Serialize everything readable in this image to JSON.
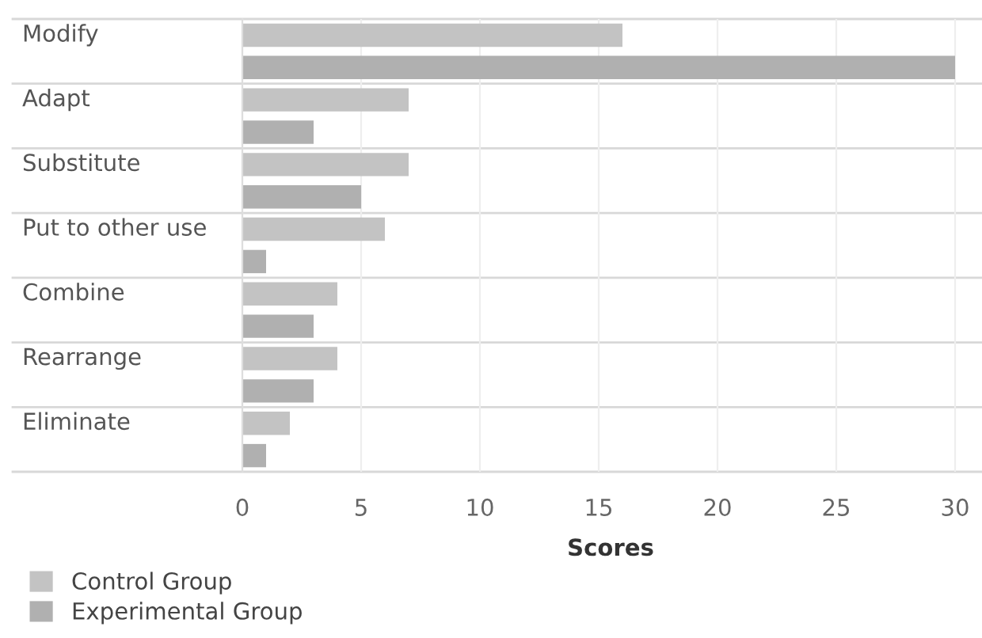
{
  "chart_data": {
    "type": "bar",
    "orientation": "horizontal",
    "categories": [
      "Modify",
      "Adapt",
      "Substitute",
      "Put to other use",
      "Combine",
      "Rearrange",
      "Eliminate"
    ],
    "series": [
      {
        "name": "Control Group",
        "color": "#c3c3c3",
        "values": [
          16,
          7,
          7,
          6,
          4,
          4,
          2
        ]
      },
      {
        "name": "Experimental Group",
        "color": "#b0b0b0",
        "values": [
          30,
          3,
          5,
          1,
          3,
          3,
          1
        ]
      }
    ],
    "xlabel": "Scores",
    "xlim": [
      0,
      31
    ],
    "xticks": [
      0,
      5,
      10,
      15,
      20,
      25,
      30
    ],
    "grid": "x",
    "legend": "bottom left"
  }
}
